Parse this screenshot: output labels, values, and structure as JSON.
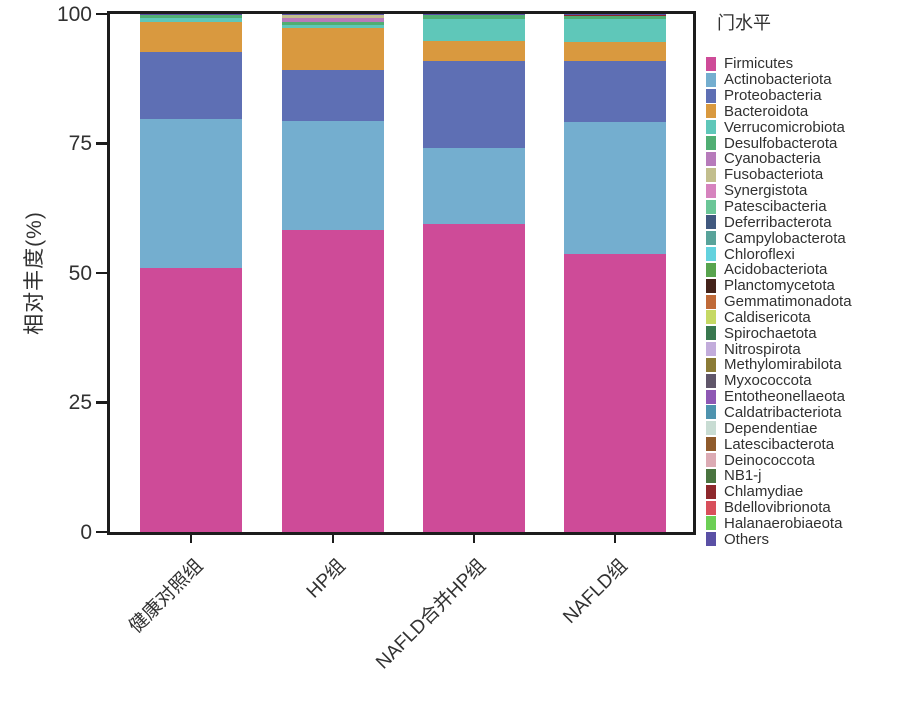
{
  "y_axis": {
    "label": "相对丰度(%)"
  },
  "legend": {
    "title": "门水平"
  },
  "chart_data": {
    "type": "bar",
    "subtype": "stacked_percent",
    "title": "",
    "xlabel": "",
    "ylabel": "相对丰度(%)",
    "legend_title": "门水平",
    "legend_position": "right",
    "grid": false,
    "ylim": [
      0,
      100
    ],
    "yticks": [
      0,
      25,
      50,
      75,
      100
    ],
    "categories": [
      "健康对照组",
      "HP组",
      "NAFLD合并HP组",
      "NAFLD组"
    ],
    "series": [
      {
        "name": "Firmicutes",
        "color": "#CE4B98",
        "values": [
          51.0,
          58.3,
          59.4,
          53.7
        ]
      },
      {
        "name": "Actinobacteriota",
        "color": "#74AECF",
        "values": [
          28.7,
          21.0,
          14.8,
          25.5
        ]
      },
      {
        "name": "Proteobacteria",
        "color": "#5E6FB4",
        "values": [
          12.9,
          9.9,
          16.8,
          11.8
        ]
      },
      {
        "name": "Bacteroidota",
        "color": "#D9993F",
        "values": [
          5.8,
          8.1,
          3.8,
          3.7
        ]
      },
      {
        "name": "Verrucomicrobiota",
        "color": "#5FC7B9",
        "values": [
          0.8,
          0.6,
          4.3,
          4.3
        ]
      },
      {
        "name": "Desulfobacterota",
        "color": "#50AE73",
        "values": [
          0.55,
          0.6,
          0.65,
          0.55
        ]
      },
      {
        "name": "Cyanobacteria",
        "color": "#B77BBB",
        "values": [
          0.04,
          0.8,
          0.04,
          0.06
        ]
      },
      {
        "name": "Fusobacteriota",
        "color": "#C2BE8D",
        "values": [
          0.04,
          0.55,
          0.04,
          0.06
        ]
      },
      {
        "name": "Synergistota",
        "color": "#D683BE",
        "values": [
          0.005,
          0.005,
          0.005,
          0.005
        ]
      },
      {
        "name": "Patescibacteria",
        "color": "#6BC697",
        "values": [
          0.005,
          0.005,
          0.005,
          0.005
        ]
      },
      {
        "name": "Deferribacterota",
        "color": "#41597F",
        "values": [
          0.005,
          0.005,
          0.005,
          0.005
        ]
      },
      {
        "name": "Campylobacterota",
        "color": "#58A39A",
        "values": [
          0.005,
          0.005,
          0.005,
          0.005
        ]
      },
      {
        "name": "Chloroflexi",
        "color": "#63D2DE",
        "values": [
          0.005,
          0.005,
          0.005,
          0.005
        ]
      },
      {
        "name": "Acidobacteriota",
        "color": "#58A44E",
        "values": [
          0.005,
          0.005,
          0.005,
          0.005
        ]
      },
      {
        "name": "Planctomycetota",
        "color": "#44231A",
        "values": [
          0.005,
          0.005,
          0.005,
          0.005
        ]
      },
      {
        "name": "Gemmatimonadota",
        "color": "#C06A38",
        "values": [
          0.005,
          0.005,
          0.005,
          0.005
        ]
      },
      {
        "name": "Caldisericota",
        "color": "#C6D964",
        "values": [
          0.005,
          0.005,
          0.005,
          0.005
        ]
      },
      {
        "name": "Spirochaetota",
        "color": "#39784F",
        "values": [
          0.005,
          0.005,
          0.005,
          0.005
        ]
      },
      {
        "name": "Nitrospirota",
        "color": "#C2ACDB",
        "values": [
          0.005,
          0.005,
          0.005,
          0.005
        ]
      },
      {
        "name": "Methylomirabilota",
        "color": "#8B7B36",
        "values": [
          0.005,
          0.005,
          0.005,
          0.005
        ]
      },
      {
        "name": "Myxococcota",
        "color": "#60566A",
        "values": [
          0.005,
          0.005,
          0.005,
          0.005
        ]
      },
      {
        "name": "Entotheonellaeota",
        "color": "#8E58B4",
        "values": [
          0.005,
          0.005,
          0.005,
          0.005
        ]
      },
      {
        "name": "Caldatribacteriota",
        "color": "#4E93AE",
        "values": [
          0.005,
          0.005,
          0.005,
          0.005
        ]
      },
      {
        "name": "Dependentiae",
        "color": "#C8DCD3",
        "values": [
          0.005,
          0.005,
          0.005,
          0.005
        ]
      },
      {
        "name": "Latescibacterota",
        "color": "#8F5B2C",
        "values": [
          0.005,
          0.005,
          0.005,
          0.005
        ]
      },
      {
        "name": "Deinococcota",
        "color": "#DCABB4",
        "values": [
          0.005,
          0.005,
          0.005,
          0.005
        ]
      },
      {
        "name": "NB1-j",
        "color": "#4A7440",
        "values": [
          0.005,
          0.005,
          0.005,
          0.005
        ]
      },
      {
        "name": "Chlamydiae",
        "color": "#8E282C",
        "values": [
          0.005,
          0.005,
          0.005,
          0.005
        ]
      },
      {
        "name": "Bdellovibrionota",
        "color": "#D84F5B",
        "values": [
          0.005,
          0.005,
          0.005,
          0.005
        ]
      },
      {
        "name": "Halanaerobiaeota",
        "color": "#6CCF55",
        "values": [
          0.005,
          0.005,
          0.005,
          0.005
        ]
      },
      {
        "name": "Others",
        "color": "#5A50A5",
        "values": [
          0.06,
          0.04,
          0.06,
          0.22
        ]
      }
    ]
  }
}
